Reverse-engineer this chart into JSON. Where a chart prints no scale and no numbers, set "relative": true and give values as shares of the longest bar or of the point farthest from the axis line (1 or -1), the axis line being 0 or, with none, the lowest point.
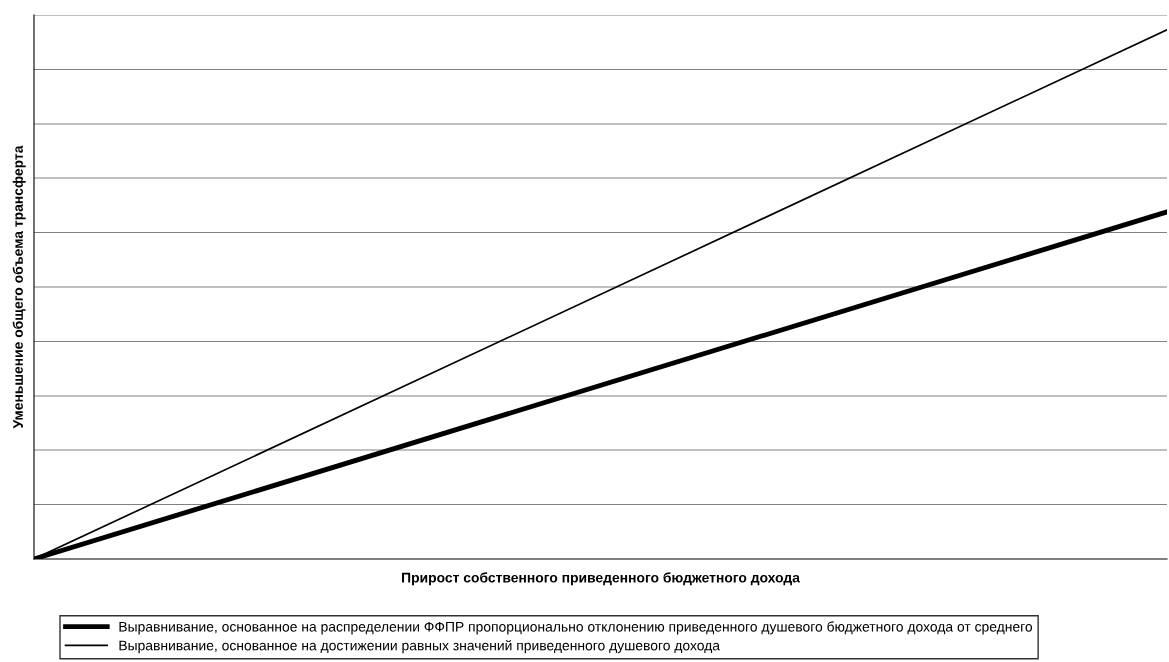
{
  "chart_data": {
    "type": "line",
    "relative": true,
    "xlabel": "Прирост собственного приведенного бюджетного дохода",
    "ylabel": "Уменьшение общего объема трансферта",
    "categories": [
      null,
      null
    ],
    "series": [
      {
        "name": "Выравнивание, основанное на распределении ФФПР пропорционально отклонению приведенного душевого бюджетного дохода от среднего",
        "color": "#000000",
        "values": [
          0,
          0.656
        ]
      },
      {
        "name": "Выравнивание, основанное на достижении равных значений приведенного душевого дохода",
        "color": "#000000",
        "values": [
          0,
          1
        ]
      }
    ],
    "ref_lines": [
      {
        "axis": "y",
        "value": 0.103,
        "color": "#808080"
      },
      {
        "axis": "y",
        "value": 0.206,
        "color": "#808080"
      },
      {
        "axis": "y",
        "value": 0.308,
        "color": "#808080"
      },
      {
        "axis": "y",
        "value": 0.411,
        "color": "#808080"
      },
      {
        "axis": "y",
        "value": 0.514,
        "color": "#808080"
      },
      {
        "axis": "y",
        "value": 0.617,
        "color": "#808080"
      },
      {
        "axis": "y",
        "value": 0.72,
        "color": "#808080"
      },
      {
        "axis": "y",
        "value": 0.822,
        "color": "#808080"
      },
      {
        "axis": "y",
        "value": 0.925,
        "color": "#808080"
      },
      {
        "axis": "y",
        "value": 1.028,
        "color": "#808080"
      }
    ],
    "legend": "bottom",
    "marker": "none",
    "line_style": "solid"
  }
}
